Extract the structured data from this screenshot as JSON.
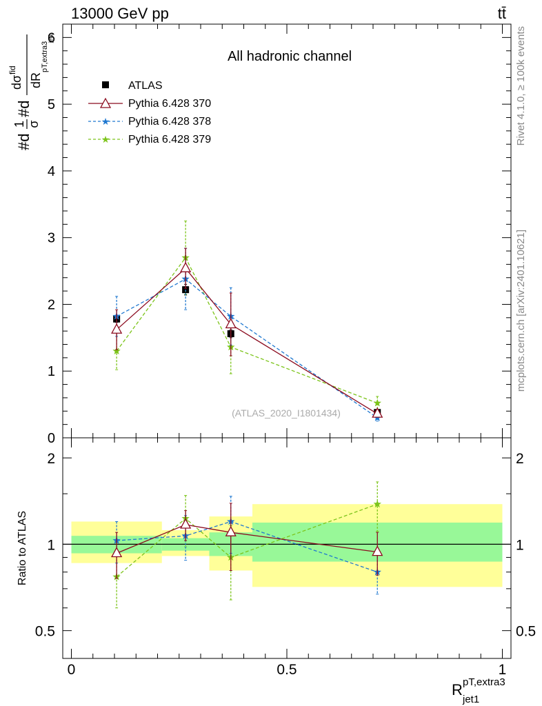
{
  "header": {
    "energy_label": "13000 GeV pp",
    "process_label": "tt̄"
  },
  "side_labels": {
    "rivet": "Rivet 4.1.0, ≥ 100k events",
    "mcplots": "mcplots.cern.ch [arXiv:2401.10621]"
  },
  "chart_data": [
    {
      "type": "line",
      "panel": "main",
      "title": "All hadronic channel",
      "analysis_tag": "(ATLAS_2020_I1801434)",
      "ylabel": "#d 1/σ #d dσ^fid / dR (p_T, extra3 / jet1)",
      "ylabel_parts": {
        "hash1": "#d",
        "num1": "1",
        "den1": "σ",
        "hash2": "#d",
        "num2": "dσ",
        "sup2": "fid",
        "den2": "dR",
        "sub2": "pT,extra3",
        "subsub2": "jet1"
      },
      "ylim": [
        0,
        6.2
      ],
      "yticks": [
        0,
        1,
        2,
        3,
        4,
        5,
        6
      ],
      "ytick_labels": [
        "0",
        "1",
        "2",
        "3",
        "4",
        "5",
        "6"
      ],
      "xlim": [
        -0.02,
        1.02
      ],
      "legend_position": "top-left",
      "series": [
        {
          "name": "ATLAS",
          "style": "data",
          "color": "#000000",
          "x": [
            0.105,
            0.265,
            0.37,
            0.71
          ],
          "y": [
            1.78,
            2.22,
            1.56,
            0.38
          ],
          "yerr": [
            0.05,
            0.08,
            0.06,
            0.03
          ]
        },
        {
          "name": "Pythia 6.428 370",
          "style": "triangle",
          "color": "#8b0a1e",
          "x": [
            0.105,
            0.265,
            0.37,
            0.71
          ],
          "y": [
            1.62,
            2.54,
            1.7,
            0.36
          ],
          "yerr": [
            0.3,
            0.3,
            0.47,
            0.05
          ]
        },
        {
          "name": "Pythia 6.428 378",
          "style": "star-dashed",
          "color": "#1f78d0",
          "x": [
            0.105,
            0.265,
            0.37,
            0.71
          ],
          "y": [
            1.82,
            2.38,
            1.82,
            0.3
          ],
          "yerr": [
            0.3,
            0.46,
            0.43,
            0.05
          ]
        },
        {
          "name": "Pythia 6.428 379",
          "style": "star-dashed",
          "color": "#7cc41a",
          "x": [
            0.105,
            0.265,
            0.37,
            0.71
          ],
          "y": [
            1.3,
            2.7,
            1.36,
            0.52
          ],
          "yerr": [
            0.28,
            0.55,
            0.4,
            0.1
          ]
        }
      ]
    },
    {
      "type": "line",
      "panel": "ratio",
      "ylabel": "Ratio to ATLAS",
      "ylim": [
        0.4,
        2.35
      ],
      "yticks": [
        0.5,
        1,
        2
      ],
      "ytick_labels": [
        "0.5",
        "1",
        "2"
      ],
      "xlim": [
        -0.02,
        1.02
      ],
      "xlabel": "R",
      "xlabel_sup": "pT,extra3",
      "xlabel_sub": "jet1",
      "xticks": [
        0,
        0.5,
        1
      ],
      "xtick_labels": [
        "0",
        "0.5",
        "1"
      ],
      "bins": [
        {
          "lo": 0.0,
          "hi": 0.21,
          "inner": [
            0.93,
            1.07
          ],
          "outer": [
            0.86,
            1.2
          ]
        },
        {
          "lo": 0.21,
          "hi": 0.32,
          "inner": [
            0.95,
            1.05
          ],
          "outer": [
            0.91,
            1.12
          ]
        },
        {
          "lo": 0.32,
          "hi": 0.42,
          "inner": [
            0.91,
            1.1
          ],
          "outer": [
            0.81,
            1.25
          ]
        },
        {
          "lo": 0.42,
          "hi": 1.0,
          "inner": [
            0.87,
            1.19
          ],
          "outer": [
            0.71,
            1.38
          ]
        }
      ],
      "series": [
        {
          "name": "Pythia 6.428 370",
          "style": "triangle",
          "color": "#8b0a1e",
          "x": [
            0.105,
            0.265,
            0.37,
            0.71
          ],
          "y": [
            0.93,
            1.17,
            1.1,
            0.94
          ],
          "yerr": [
            0.17,
            0.14,
            0.29,
            0.16
          ]
        },
        {
          "name": "Pythia 6.428 378",
          "style": "star-dashed",
          "color": "#1f78d0",
          "x": [
            0.105,
            0.265,
            0.37,
            0.71
          ],
          "y": [
            1.03,
            1.07,
            1.2,
            0.8
          ],
          "yerr": [
            0.17,
            0.19,
            0.27,
            0.13
          ]
        },
        {
          "name": "Pythia 6.428 379",
          "style": "star-dashed",
          "color": "#7cc41a",
          "x": [
            0.105,
            0.265,
            0.37,
            0.71
          ],
          "y": [
            0.77,
            1.23,
            0.9,
            1.38
          ],
          "yerr": [
            0.17,
            0.25,
            0.26,
            0.27
          ]
        }
      ]
    }
  ]
}
